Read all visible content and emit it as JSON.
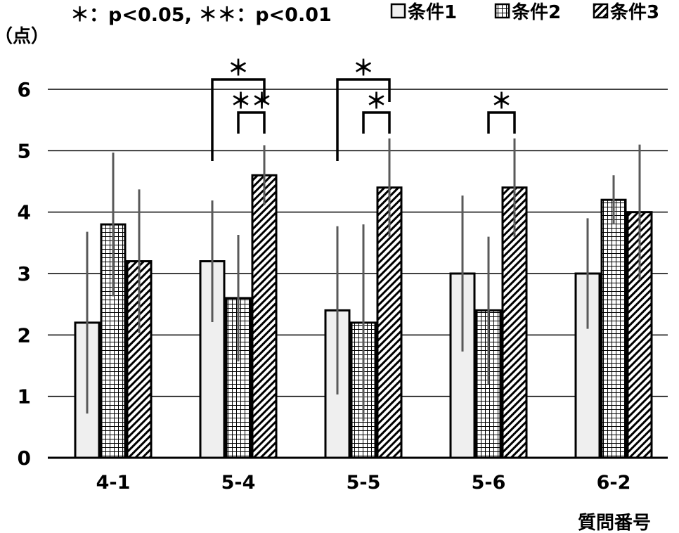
{
  "chart_data": {
    "type": "bar",
    "categories": [
      "4-1",
      "5-4",
      "5-5",
      "5-6",
      "6-2"
    ],
    "series": [
      {
        "name": "条件1",
        "values": [
          2.2,
          3.2,
          2.4,
          3.0,
          3.0
        ],
        "errors": [
          1.48,
          0.99,
          1.37,
          1.27,
          0.9
        ],
        "pattern": "plain"
      },
      {
        "name": "条件2",
        "values": [
          3.8,
          2.6,
          2.2,
          2.4,
          4.2
        ],
        "errors": [
          1.17,
          1.03,
          1.6,
          1.2,
          0.4
        ],
        "pattern": "grid"
      },
      {
        "name": "条件3",
        "values": [
          3.2,
          4.6,
          4.4,
          4.4,
          4.0
        ],
        "errors": [
          1.17,
          0.49,
          0.8,
          0.8,
          1.1
        ],
        "pattern": "hatch"
      }
    ],
    "ylim": [
      0,
      6
    ],
    "yticks": [
      0,
      1,
      2,
      3,
      4,
      5,
      6
    ],
    "ylabel": "（点）",
    "xlabel": "質問番号",
    "significance_note": "＊：p<0.05, ＊＊：p<0.01",
    "significance": [
      {
        "category": "5-4",
        "from": "条件1",
        "to": "条件3",
        "mark": "＊"
      },
      {
        "category": "5-4",
        "from": "条件2",
        "to": "条件3",
        "mark": "＊＊"
      },
      {
        "category": "5-5",
        "from": "条件1",
        "to": "条件3",
        "mark": "＊"
      },
      {
        "category": "5-5",
        "from": "条件2",
        "to": "条件3",
        "mark": "＊"
      },
      {
        "category": "5-6",
        "from": "条件2",
        "to": "条件3",
        "mark": "＊"
      }
    ],
    "grid": true,
    "legend_position": "top-right",
    "colors": {
      "bar_fill": "#efefef",
      "bar_stroke": "#000000",
      "error_bar": "#595959",
      "gridline": "#000000"
    }
  }
}
